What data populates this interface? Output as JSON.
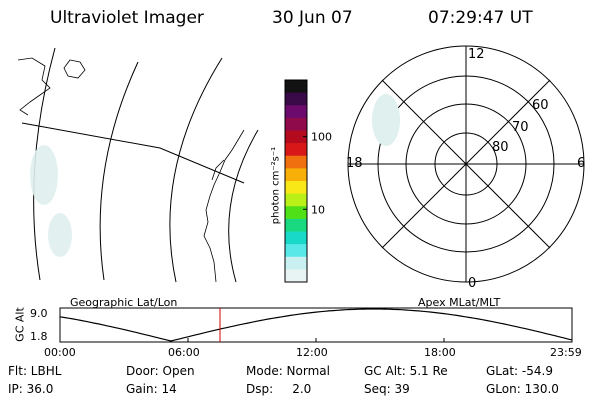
{
  "header": {
    "title": "Ultraviolet Imager",
    "date": "30 Jun 07",
    "time": "07:29:47 UT"
  },
  "colorbar": {
    "label": "photon cm⁻²s⁻¹",
    "ticks": [
      {
        "label": "100",
        "value": 100
      },
      {
        "label": "10",
        "value": 10
      }
    ],
    "colors": [
      "#121212",
      "#3a0a48",
      "#6c0a6e",
      "#8e0a4a",
      "#b40a1e",
      "#d81818",
      "#f07010",
      "#f8b008",
      "#f8e818",
      "#b8f018",
      "#50e018",
      "#18d880",
      "#18d8c8",
      "#58e8e8",
      "#c8f0f0",
      "#e8f4f4"
    ]
  },
  "polar_plot": {
    "lat_labels": [
      "80",
      "70",
      "60"
    ],
    "mlt_labels": {
      "top": "12",
      "bottom": "0",
      "left": "18",
      "right": "6"
    }
  },
  "altitude_plot": {
    "left_label": "Geographic Lat/Lon",
    "right_label": "Apex MLat/MLT",
    "axis_label": "GC Alt",
    "y_ticks": [
      "9.0",
      "1.8"
    ],
    "x_ticks": [
      "00:00",
      "06:00",
      "12:00",
      "18:00",
      "23:59"
    ],
    "current_time_hours": 7.5
  },
  "footer": {
    "filter": "Flt: LBHL",
    "door": "Door: Open",
    "mode": "Mode: Normal",
    "gc_alt": "GC Alt: 5.1 Re",
    "glat": "GLat: -54.9",
    "ip": "IP: 36.0",
    "gain": "Gain: 14",
    "dsp": "Dsp:     2.0",
    "seq": "Seq: 39",
    "glon": "GLon: 130.0"
  }
}
